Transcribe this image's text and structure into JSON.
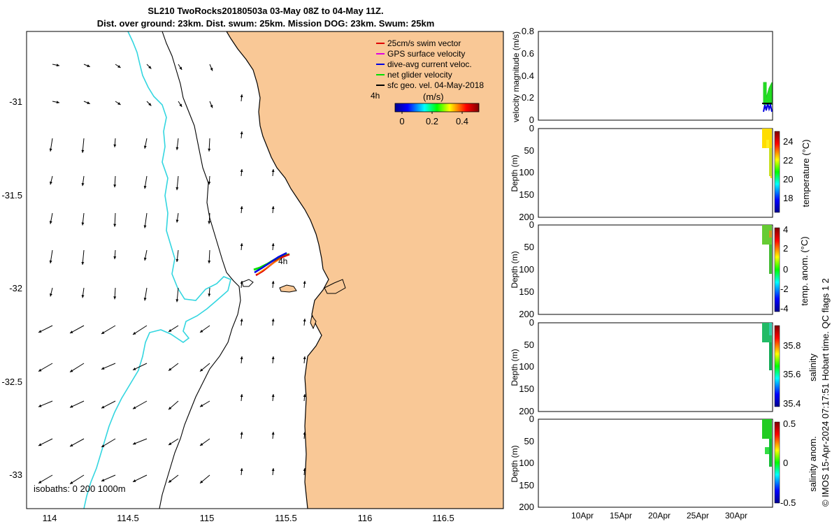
{
  "title_line1": "SL210 TwoRocks20180503a 03-May 08Z to 04-May 11Z.",
  "title_line2": "Dist. over ground: 23km. Dist. swum: 25km. Mission DOG: 23km. Swum: 25km",
  "map": {
    "lat_ticks": [
      "-31",
      "-31.5",
      "-32",
      "-32.5",
      "-33"
    ],
    "lon_ticks": [
      "114",
      "114.5",
      "115",
      "115.5",
      "116",
      "116.5"
    ],
    "isobaths_label": "isobaths: 0   200  1000m",
    "legend": [
      {
        "label": "25cm/s swim vector",
        "color": "#e00000"
      },
      {
        "label": "GPS surface velocity",
        "color": "#e000e0"
      },
      {
        "label": "dive-avg current veloc.",
        "color": "#0000e0"
      },
      {
        "label": "net glider velocity",
        "color": "#00e000"
      },
      {
        "label": "sfc geo. vel. 04-May-2018",
        "color": "#000000"
      }
    ],
    "time_label": "4h",
    "track_label": "4h",
    "colorbar": {
      "unit_label": "(m/s)",
      "ticks": [
        "0",
        "0.2",
        "0.4"
      ]
    },
    "land_color": "#f9c896"
  },
  "panels": {
    "velocity": {
      "ylabel": "velocity magnitude (m/s)",
      "yticks": [
        "0.8",
        "0.6",
        "0.4",
        "0.2",
        "0"
      ]
    },
    "temperature": {
      "ylabel": "Depth (m)",
      "yticks": [
        "0",
        "50",
        "100",
        "150",
        "200"
      ],
      "cb_label": "temperature (°C)",
      "cb_ticks": [
        "24",
        "22",
        "20",
        "18"
      ]
    },
    "temp_anom": {
      "ylabel": "Depth (m)",
      "yticks": [
        "0",
        "50",
        "100",
        "150",
        "200"
      ],
      "cb_label": "temp. anom. (°C)",
      "cb_ticks": [
        "4",
        "2",
        "0",
        "-2",
        "-4"
      ]
    },
    "salinity": {
      "ylabel": "Depth (m)",
      "yticks": [
        "0",
        "50",
        "100",
        "150",
        "200"
      ],
      "cb_label": "salinity",
      "cb_ticks": [
        "35.8",
        "35.6",
        "35.4"
      ]
    },
    "sal_anom": {
      "ylabel": "Depth (m)",
      "yticks": [
        "0",
        "50",
        "100",
        "150",
        "200"
      ],
      "cb_label": "salinity anom.",
      "cb_ticks": [
        "0.5",
        "0",
        "-0.5"
      ]
    },
    "xticks": [
      "10Apr",
      "15Apr",
      "20Apr",
      "25Apr",
      "30Apr"
    ]
  },
  "footer": "© IMOS 15-Apr-2024 07:17:51 Hobart time. QC flags 1  2"
}
